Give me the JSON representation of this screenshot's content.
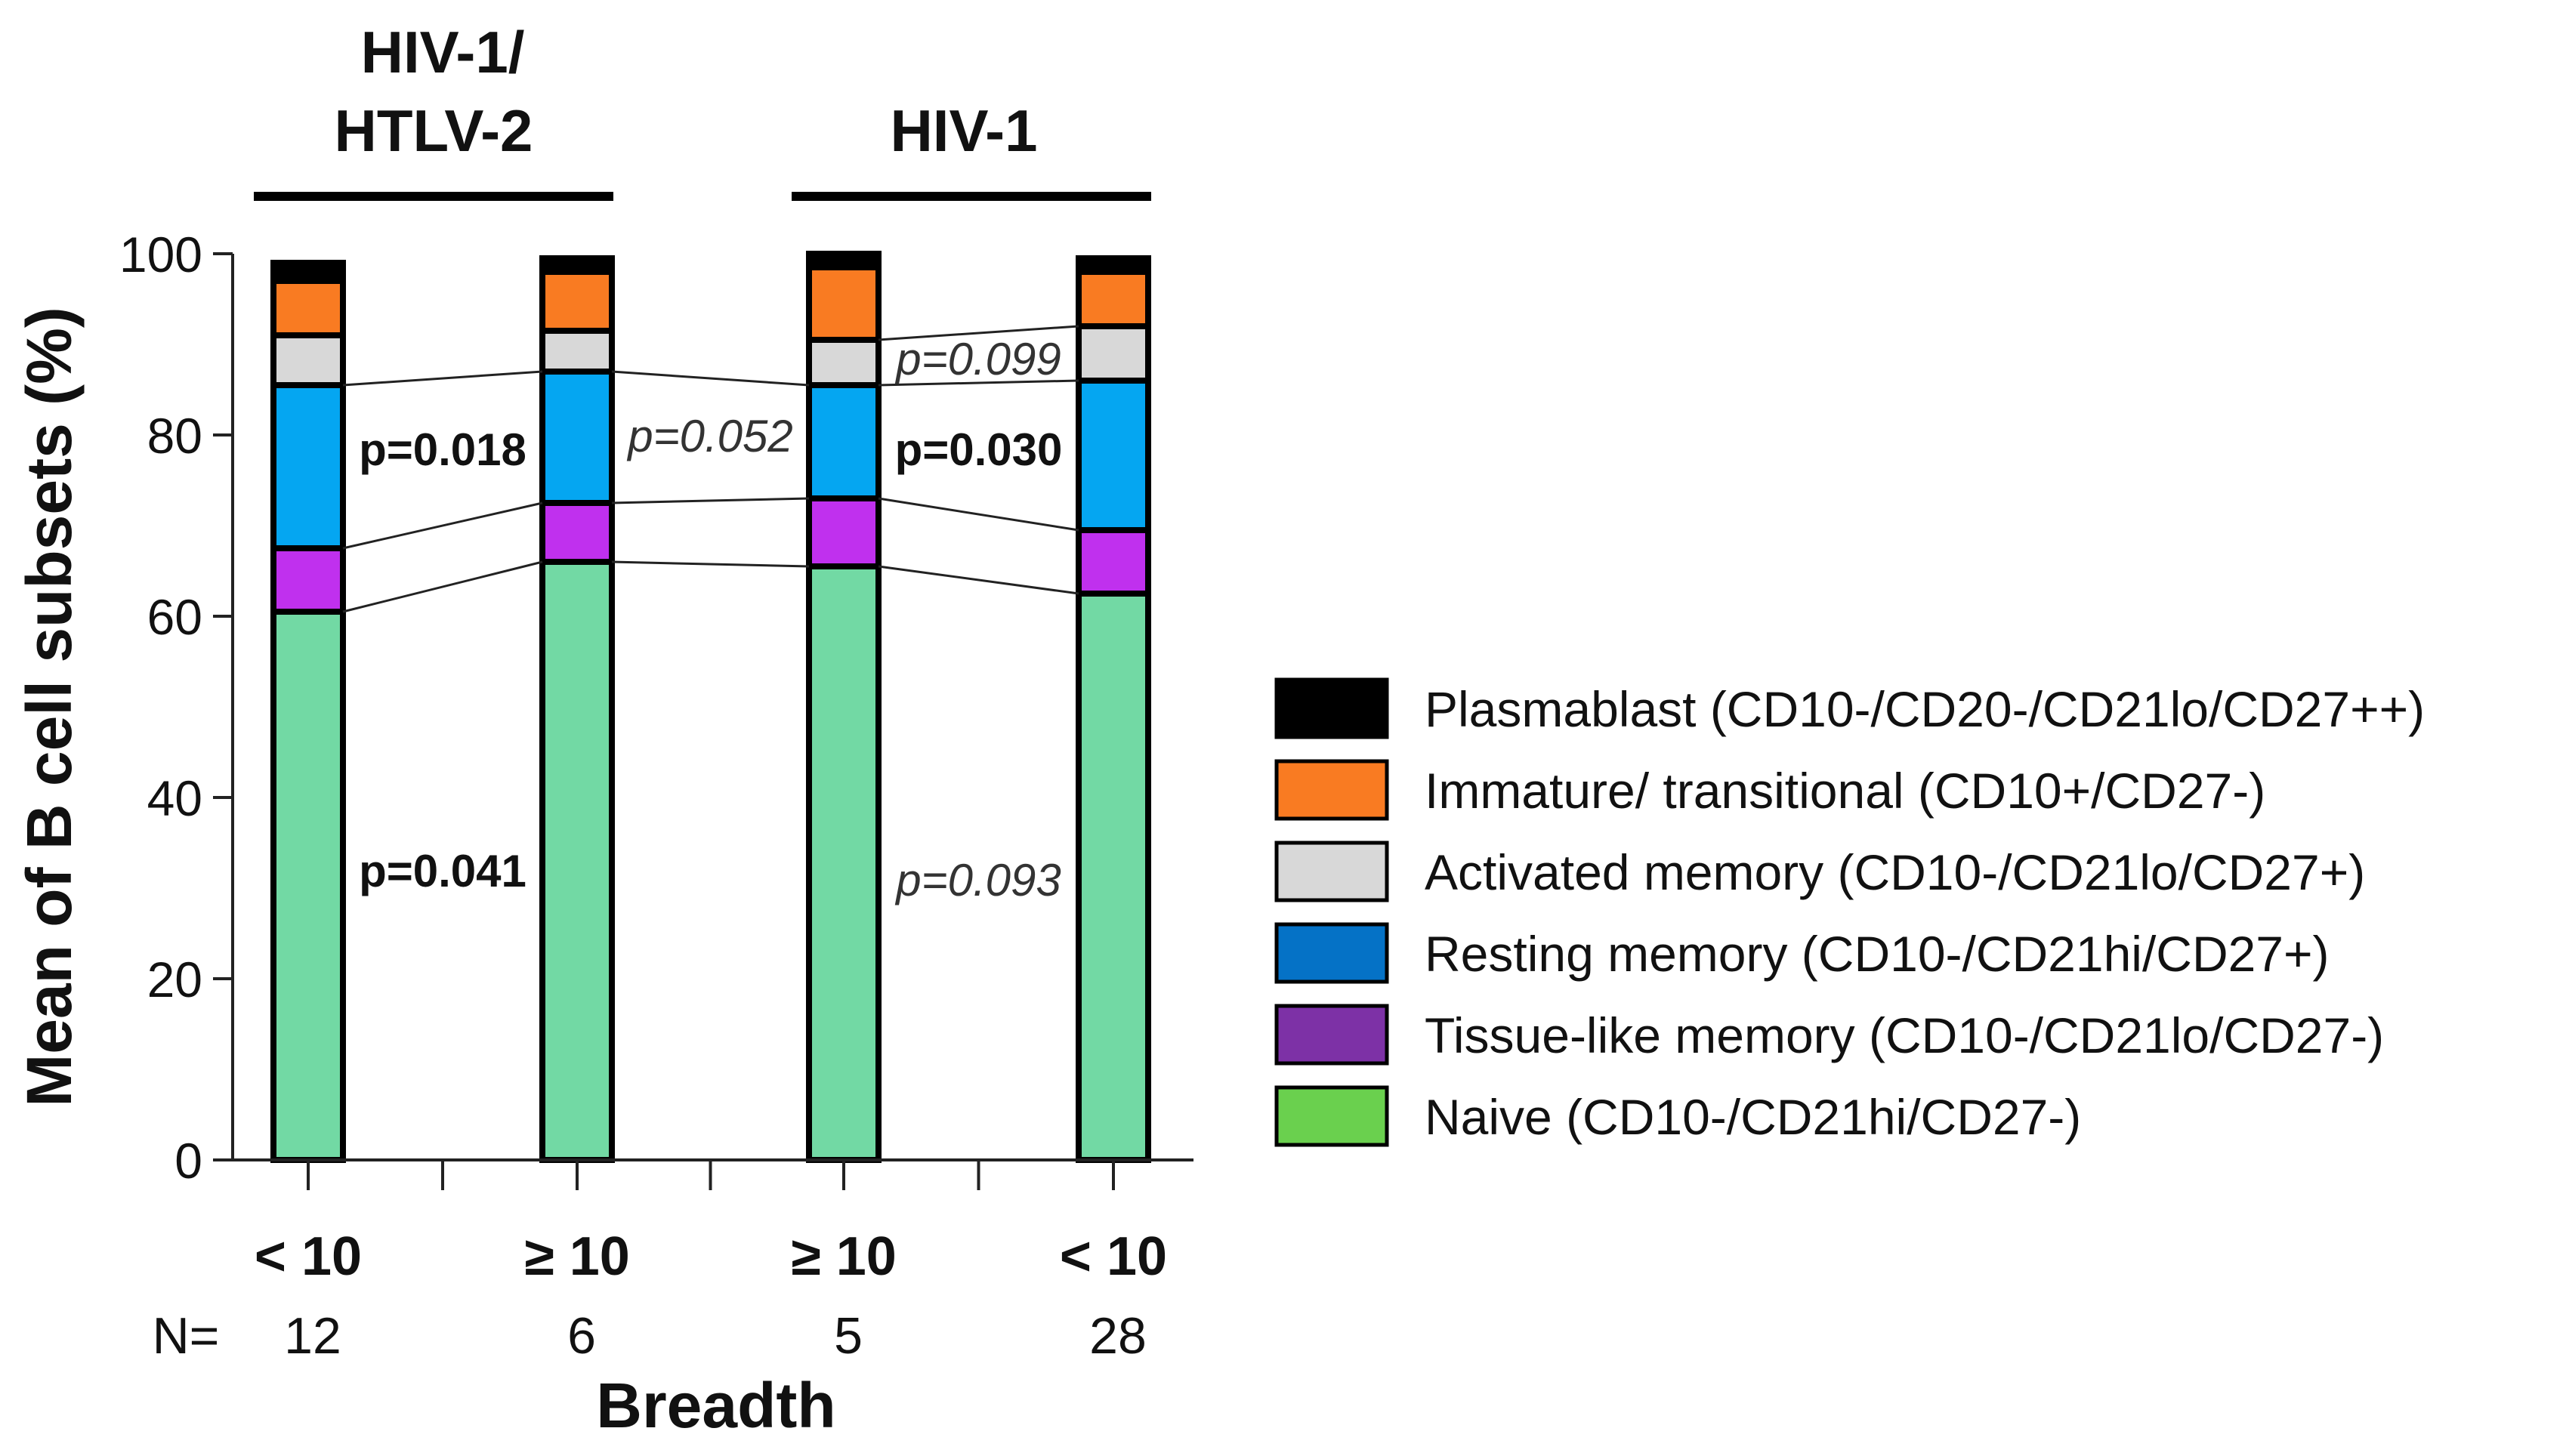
{
  "chart_data": {
    "type": "bar",
    "stacked": true,
    "ylabel": "Mean of B cell subsets (%)",
    "xlabel": "Breadth",
    "ylim": [
      0,
      100
    ],
    "yticks": [
      "0",
      "20",
      "40",
      "60",
      "80",
      "100"
    ],
    "categories": [
      "< 10",
      "≥ 10",
      "≥ 10",
      "< 10"
    ],
    "n_label": "N=",
    "n_values": [
      "12",
      "6",
      "5",
      "28"
    ],
    "groups": [
      {
        "label_line1": "HIV-1/",
        "label_line2": "HTLV-2"
      },
      {
        "label_line1": "HIV-1",
        "label_line2": ""
      }
    ],
    "series": [
      {
        "name": "Naive (CD10-/CD21hi/CD27-)",
        "bar_color": "#72d9a4",
        "legend_color": "#6ad04e",
        "values": [
          60.5,
          66.0,
          65.5,
          62.5
        ]
      },
      {
        "name": "Tissue-like memory (CD10-/CD21lo/CD27-)",
        "bar_color": "#c030ee",
        "legend_color": "#7d31a6",
        "values": [
          7.0,
          6.5,
          7.5,
          7.0
        ]
      },
      {
        "name": "Resting memory (CD10-/CD21hi/CD27+)",
        "bar_color": "#05a6f1",
        "legend_color": "#0572c6",
        "values": [
          18.0,
          14.5,
          12.5,
          16.5
        ]
      },
      {
        "name": "Activated memory (CD10-/CD21lo/CD27+)",
        "bar_color": "#d8d8d8",
        "legend_color": "#d8d8d8",
        "values": [
          5.5,
          4.5,
          5.0,
          6.0
        ]
      },
      {
        "name": "Immature/ transitional (CD10+/CD27-)",
        "bar_color": "#f97b22",
        "legend_color": "#f97b22",
        "values": [
          6.0,
          6.5,
          8.0,
          6.0
        ]
      },
      {
        "name": "Plasmablast (CD10-/CD20-/CD21lo/CD27++)",
        "bar_color": "#000000",
        "legend_color": "#000000",
        "values": [
          2.0,
          1.5,
          1.5,
          1.5
        ]
      }
    ],
    "connectors": [
      {
        "series_boundary": 1,
        "bars": [
          0,
          1,
          2,
          3
        ]
      },
      {
        "series_boundary": 2,
        "bars": [
          0,
          1,
          2,
          3
        ]
      },
      {
        "series_boundary": 3,
        "bars": [
          0,
          1,
          2,
          3
        ]
      },
      {
        "series_boundary": 4,
        "bars": [
          2,
          3
        ]
      }
    ],
    "annotations": [
      {
        "text": "p=0.018",
        "style": "bold",
        "between": [
          0,
          1
        ],
        "y": 78.5
      },
      {
        "text": "p=0.052",
        "style": "italic",
        "between": [
          1,
          2
        ],
        "y": 80.0
      },
      {
        "text": "p=0.030",
        "style": "bold",
        "between": [
          2,
          3
        ],
        "y": 78.5
      },
      {
        "text": "p=0.099",
        "style": "italic",
        "between": [
          2,
          3
        ],
        "y": 88.5
      },
      {
        "text": "p=0.041",
        "style": "bold",
        "between": [
          0,
          1
        ],
        "y": 32.0
      },
      {
        "text": "p=0.093",
        "style": "italic",
        "between": [
          2,
          3
        ],
        "y": 31.0
      }
    ],
    "legend_position": "right"
  }
}
